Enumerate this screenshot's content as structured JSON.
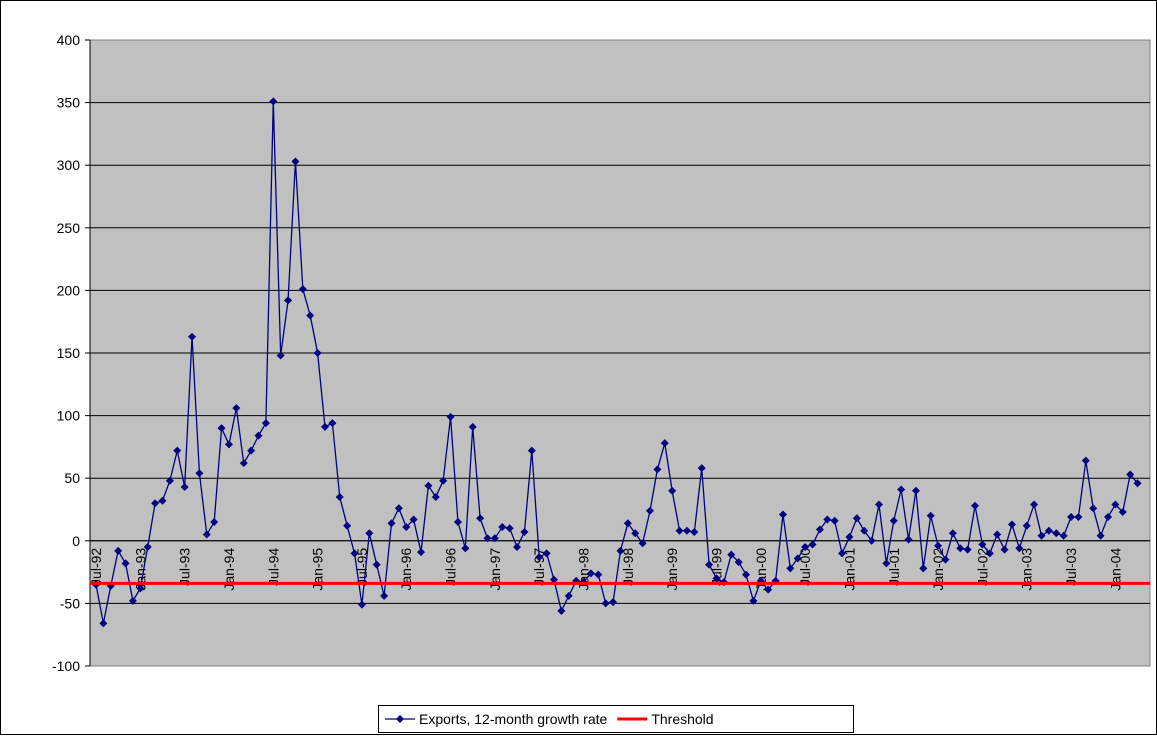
{
  "chart_data": {
    "type": "line",
    "categories": [
      "Jul-92",
      null,
      null,
      null,
      null,
      null,
      "Jan-93",
      null,
      null,
      null,
      null,
      null,
      "Jul-93",
      null,
      null,
      null,
      null,
      null,
      "Jan-94",
      null,
      null,
      null,
      null,
      null,
      "Jul-94",
      null,
      null,
      null,
      null,
      null,
      "Jan-95",
      null,
      null,
      null,
      null,
      null,
      "Jul-95",
      null,
      null,
      null,
      null,
      null,
      "Jan-96",
      null,
      null,
      null,
      null,
      null,
      "Jul-96",
      null,
      null,
      null,
      null,
      null,
      "Jan-97",
      null,
      null,
      null,
      null,
      null,
      "Jul-97",
      null,
      null,
      null,
      null,
      null,
      "Jan-98",
      null,
      null,
      null,
      null,
      null,
      "Jul-98",
      null,
      null,
      null,
      null,
      null,
      "Jan-99",
      null,
      null,
      null,
      null,
      null,
      "Jul-99",
      null,
      null,
      null,
      null,
      null,
      "Jan-00",
      null,
      null,
      null,
      null,
      null,
      "Jul-00",
      null,
      null,
      null,
      null,
      null,
      "Jan-01",
      null,
      null,
      null,
      null,
      null,
      "Jul-01",
      null,
      null,
      null,
      null,
      null,
      "Jan-02",
      null,
      null,
      null,
      null,
      null,
      "Jul-02",
      null,
      null,
      null,
      null,
      null,
      "Jan-03",
      null,
      null,
      null,
      null,
      null,
      "Jul-03",
      null,
      null,
      null,
      null,
      null,
      "Jan-04",
      null,
      null,
      null
    ],
    "series": [
      {
        "name": "Exports, 12-month growth rate",
        "color": "#000080",
        "values": [
          -35,
          -66,
          -36,
          -8,
          -18,
          -48,
          -38,
          -5,
          30,
          32,
          48,
          72,
          43,
          163,
          54,
          5,
          15,
          90,
          77,
          106,
          62,
          72,
          84,
          94,
          351,
          148,
          192,
          303,
          201,
          180,
          150,
          91,
          94,
          35,
          12,
          -10,
          -51,
          6,
          -19,
          -44,
          14,
          26,
          11,
          17,
          -9,
          44,
          35,
          48,
          99,
          15,
          -6,
          91,
          18,
          2,
          2,
          11,
          10,
          -5,
          7,
          72,
          -13,
          -10,
          -31,
          -56,
          -44,
          -32,
          -33,
          -26,
          -27,
          -50,
          -49,
          -8,
          14,
          6,
          -2,
          24,
          57,
          78,
          40,
          8,
          8,
          7,
          58,
          -19,
          -30,
          -33,
          -11,
          -17,
          -27,
          -48,
          -32,
          -39,
          -32,
          21,
          -22,
          -14,
          -5,
          -3,
          9,
          17,
          16,
          -10,
          3,
          18,
          8,
          0,
          29,
          -18,
          16,
          41,
          1,
          40,
          -22,
          20,
          -4,
          -15,
          6,
          -6,
          -7,
          28,
          -3,
          -10,
          5,
          -7,
          13,
          -6,
          12,
          29,
          4,
          8,
          6,
          4,
          19,
          19,
          64,
          26,
          4,
          19,
          29,
          23,
          53,
          46
        ]
      },
      {
        "name": "Threshold",
        "color": "#ff0000",
        "value": -34
      }
    ],
    "ylim": [
      -100,
      400
    ],
    "yticks": [
      -100,
      -50,
      0,
      50,
      100,
      150,
      200,
      250,
      300,
      350,
      400
    ],
    "grid": true
  }
}
